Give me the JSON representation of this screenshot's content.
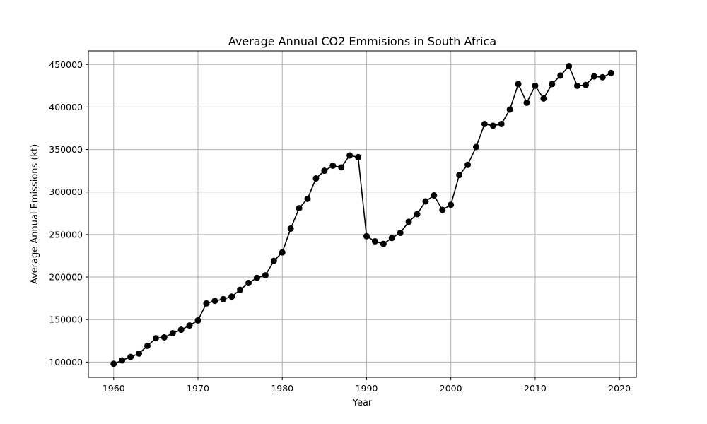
{
  "chart_data": {
    "type": "line",
    "title": "Average Annual CO2 Emmisions in South Africa",
    "xlabel": "Year",
    "ylabel": "Average Annual Emissions (kt)",
    "xlim": [
      1957,
      2022
    ],
    "ylim": [
      82000,
      466000
    ],
    "xticks": [
      1960,
      1970,
      1980,
      1990,
      2000,
      2010,
      2020
    ],
    "yticks": [
      100000,
      150000,
      200000,
      250000,
      300000,
      350000,
      400000,
      450000
    ],
    "grid": true,
    "line_color": "#000000",
    "marker": "circle",
    "x": [
      1960,
      1961,
      1962,
      1963,
      1964,
      1965,
      1966,
      1967,
      1968,
      1969,
      1970,
      1971,
      1972,
      1973,
      1974,
      1975,
      1976,
      1977,
      1978,
      1979,
      1980,
      1981,
      1982,
      1983,
      1984,
      1985,
      1986,
      1987,
      1988,
      1989,
      1990,
      1991,
      1992,
      1993,
      1994,
      1995,
      1996,
      1997,
      1998,
      1999,
      2000,
      2001,
      2002,
      2003,
      2004,
      2005,
      2006,
      2007,
      2008,
      2009,
      2010,
      2011,
      2012,
      2013,
      2014,
      2015,
      2016,
      2017,
      2018,
      2019
    ],
    "y": [
      98000,
      102000,
      106000,
      110000,
      119000,
      128000,
      129000,
      134000,
      138000,
      143000,
      149000,
      169000,
      172000,
      174000,
      177000,
      185000,
      193000,
      199000,
      202000,
      219000,
      229000,
      257000,
      281000,
      292000,
      316000,
      325000,
      331000,
      329000,
      343000,
      341000,
      248000,
      242000,
      239000,
      246000,
      252000,
      265000,
      274000,
      289000,
      296000,
      279000,
      285000,
      320000,
      332000,
      353000,
      380000,
      378000,
      380000,
      397000,
      427000,
      405000,
      425000,
      410000,
      427000,
      437000,
      448000,
      425000,
      426000,
      436000,
      435000,
      440000
    ]
  }
}
